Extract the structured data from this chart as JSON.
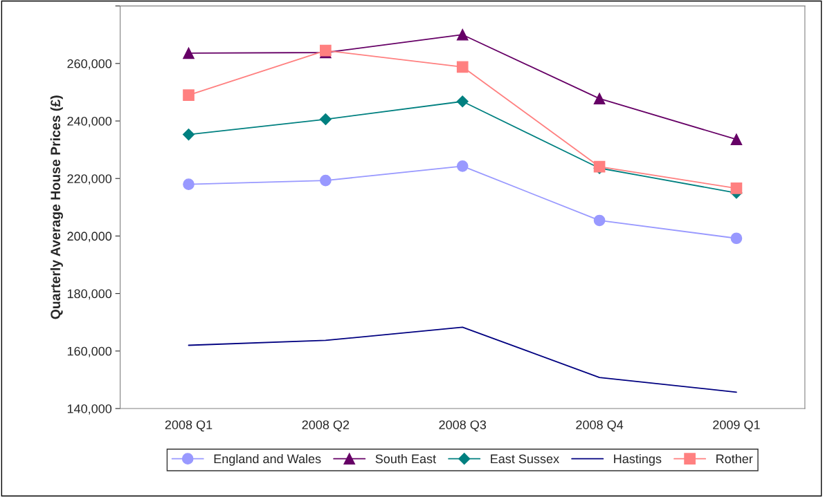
{
  "chart_data": {
    "type": "line",
    "ylabel": "Quarterly Average House Prices (£)",
    "categories": [
      "2008 Q1",
      "2008 Q2",
      "2008 Q3",
      "2008 Q4",
      "2009 Q1"
    ],
    "series": [
      {
        "name": "England and Wales",
        "color": "#9999ff",
        "marker": "circle",
        "values": [
          218000,
          219300,
          224300,
          205400,
          199200
        ]
      },
      {
        "name": "South East",
        "color": "#660066",
        "marker": "triangle",
        "values": [
          263600,
          263800,
          270000,
          247800,
          233600
        ]
      },
      {
        "name": "East Sussex",
        "color": "#008080",
        "marker": "diamond",
        "values": [
          235300,
          240600,
          246800,
          223600,
          215000
        ]
      },
      {
        "name": "Hastings",
        "color": "#000080",
        "marker": "none",
        "values": [
          162000,
          163700,
          168300,
          150800,
          145700
        ]
      },
      {
        "name": "Rother",
        "color": "#ff8080",
        "marker": "square",
        "values": [
          249000,
          264500,
          258800,
          224100,
          216600
        ]
      }
    ],
    "ylim": [
      140000,
      280000
    ],
    "yticks": [
      {
        "value": 140000,
        "label": "140,000"
      },
      {
        "value": 160000,
        "label": "160,000"
      },
      {
        "value": 180000,
        "label": "180,000"
      },
      {
        "value": 200000,
        "label": "200,000"
      },
      {
        "value": 220000,
        "label": "220,000"
      },
      {
        "value": 240000,
        "label": "240,000"
      },
      {
        "value": 260000,
        "label": "260,000"
      },
      {
        "value": 280000,
        "label": null
      }
    ],
    "grid": false,
    "legend": "bottom",
    "line_style": "solid"
  }
}
